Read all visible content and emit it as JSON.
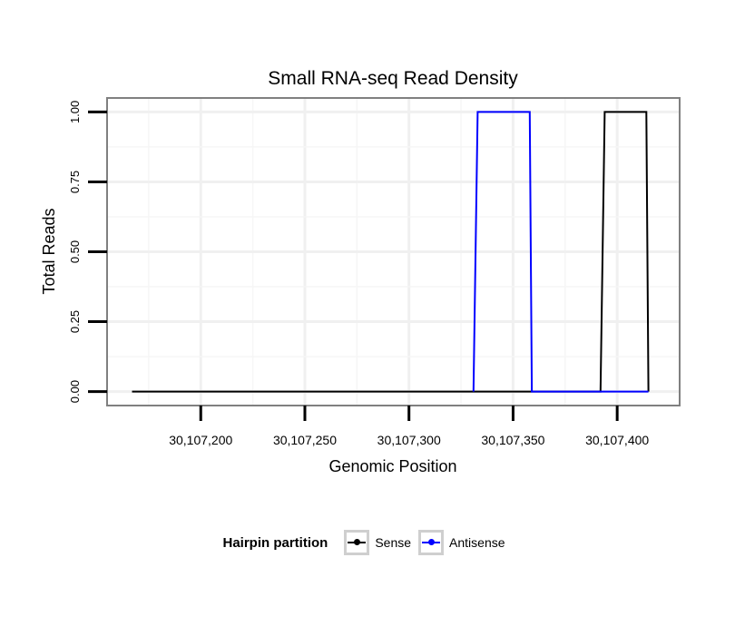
{
  "chart_data": {
    "type": "line",
    "title": "Small RNA-seq Read Density",
    "xlabel": "Genomic Position",
    "ylabel": "Total Reads",
    "xlim": [
      30107155,
      30107430
    ],
    "ylim": [
      -0.05,
      1.05
    ],
    "x_ticks": [
      30107200,
      30107250,
      30107300,
      30107350,
      30107400
    ],
    "x_tick_labels": [
      "30,107,200",
      "30,107,250",
      "30,107,300",
      "30,107,350",
      "30,107,400"
    ],
    "y_ticks": [
      0,
      0.25,
      0.5,
      0.75,
      1
    ],
    "y_tick_labels": [
      "0.00",
      "0.25",
      "0.50",
      "0.75",
      "1.00"
    ],
    "grid": true,
    "series": [
      {
        "name": "Sense",
        "color": "#000000",
        "x": [
          30107167,
          30107392,
          30107394,
          30107414,
          30107415
        ],
        "y": [
          0,
          0,
          1,
          1,
          0
        ]
      },
      {
        "name": "Antisense",
        "color": "#0000ff",
        "x": [
          30107331,
          30107333,
          30107358,
          30107359,
          30107415
        ],
        "y": [
          0,
          1,
          1,
          0,
          0
        ]
      }
    ],
    "legend": {
      "title": "Hairpin partition",
      "position": "bottom"
    }
  }
}
